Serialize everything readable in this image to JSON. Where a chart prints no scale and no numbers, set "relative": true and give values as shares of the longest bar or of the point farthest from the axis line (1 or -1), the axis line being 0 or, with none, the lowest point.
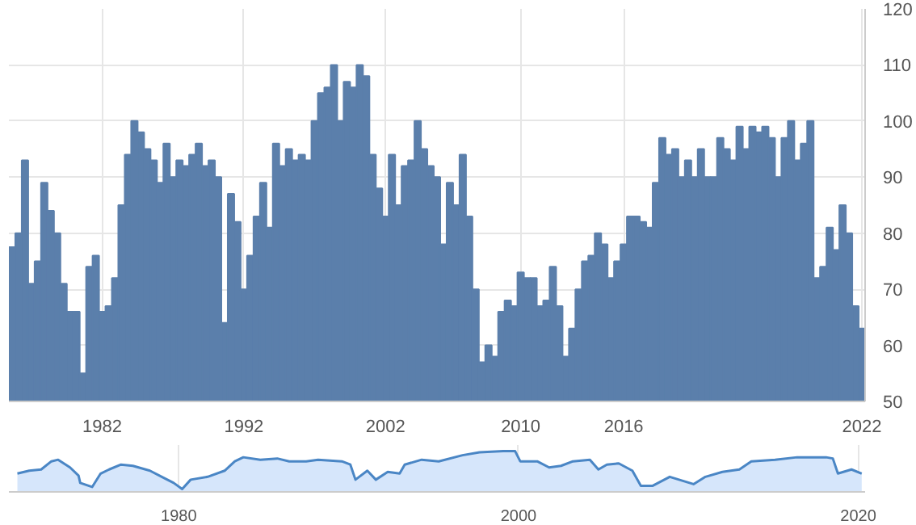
{
  "chart_data": [
    {
      "type": "bar",
      "categories": [
        null,
        null,
        null,
        null,
        null,
        null,
        null,
        null,
        null,
        null,
        null,
        null,
        null,
        null,
        "1982",
        null,
        null,
        null,
        null,
        null,
        null,
        null,
        null,
        null,
        null,
        null,
        null,
        null,
        null,
        null,
        null,
        null,
        null,
        null,
        null,
        null,
        "1992",
        null,
        null,
        null,
        null,
        null,
        null,
        null,
        null,
        null,
        null,
        null,
        null,
        null,
        null,
        null,
        null,
        null,
        null,
        null,
        null,
        null,
        "2002",
        null,
        null,
        null,
        null,
        null,
        null,
        null,
        null,
        null,
        null,
        null,
        null,
        null,
        null,
        null,
        null,
        null,
        null,
        null,
        null,
        "2010",
        null,
        null,
        null,
        null,
        null,
        null,
        null,
        null,
        null,
        null,
        null,
        null,
        null,
        null,
        null,
        "2016",
        null,
        null,
        null,
        null,
        null,
        null,
        null,
        null,
        null,
        null,
        null,
        null,
        null,
        null,
        null,
        null,
        null,
        null,
        null,
        null,
        null,
        null,
        null,
        null,
        null,
        null,
        null,
        null,
        null,
        null,
        null,
        null,
        null,
        null,
        null,
        null,
        "2022"
      ],
      "values": [
        77.5,
        80,
        93,
        71,
        75,
        89,
        84,
        80,
        71,
        66,
        66,
        55,
        74,
        76,
        66,
        67,
        72,
        85,
        94,
        100,
        98,
        95,
        93,
        89,
        96,
        90,
        93,
        92,
        94,
        96,
        92,
        93,
        90,
        64,
        87,
        82,
        70,
        76,
        83,
        89,
        81,
        96,
        92,
        95,
        93,
        94,
        93,
        100,
        105,
        106,
        110,
        100,
        107,
        106,
        110,
        108,
        94,
        88,
        83,
        94,
        85,
        92,
        93,
        100,
        95,
        92,
        90,
        78,
        89,
        85,
        94,
        83,
        70,
        57,
        60,
        58,
        66,
        68,
        67,
        73,
        72,
        72,
        67,
        68,
        74,
        67,
        58,
        63,
        70,
        75,
        76,
        80,
        78,
        72,
        75,
        78,
        83,
        83,
        82,
        81,
        89,
        97,
        94,
        95,
        90,
        93,
        90,
        95,
        90,
        90,
        97,
        95,
        93,
        99,
        95,
        99,
        98,
        99,
        97,
        90,
        97,
        100,
        93,
        96,
        100,
        72,
        74,
        81,
        77,
        85,
        80,
        67,
        63
      ],
      "color": "#5b7fab",
      "ylim": [
        50,
        120
      ],
      "yticks": [
        50,
        60,
        70,
        80,
        90,
        100,
        110,
        120
      ],
      "grid": true
    },
    {
      "type": "area",
      "relative": true,
      "color": "#4a86c5",
      "x": [
        1970.5,
        1971.2,
        1971.9,
        1972.5,
        1972.9,
        1973.6,
        1974.1,
        1974.2,
        1974.9,
        1975.4,
        1975.9,
        1976.6,
        1977.3,
        1978.3,
        1979.0,
        1979.7,
        1980.2,
        1980.7,
        1981.7,
        1982.7,
        1983.3,
        1983.8,
        1984.8,
        1985.8,
        1986.5,
        1987.5,
        1988.2,
        1989.6,
        1990.1,
        1990.4,
        1991.1,
        1991.6,
        1992.3,
        1993.0,
        1993.3,
        1994.3,
        1995.3,
        1996.7,
        1997.7,
        1999.1,
        1999.8,
        2000.1,
        2001.1,
        2001.8,
        2002.5,
        2003.2,
        2004.2,
        2004.7,
        2005.2,
        2005.9,
        2006.7,
        2007.2,
        2007.9,
        2008.9,
        2010.3,
        2011.0,
        2012.0,
        2013.0,
        2013.7,
        2015.1,
        2016.4,
        2018.1,
        2018.5,
        2018.8,
        2019.6,
        2020.2
      ],
      "values": [
        0.45,
        0.52,
        0.55,
        0.75,
        0.79,
        0.6,
        0.4,
        0.22,
        0.12,
        0.45,
        0.55,
        0.67,
        0.64,
        0.52,
        0.37,
        0.22,
        0.07,
        0.3,
        0.37,
        0.52,
        0.75,
        0.85,
        0.79,
        0.82,
        0.75,
        0.75,
        0.79,
        0.75,
        0.67,
        0.3,
        0.52,
        0.3,
        0.49,
        0.45,
        0.67,
        0.79,
        0.75,
        0.9,
        0.97,
        1,
        1,
        0.75,
        0.75,
        0.6,
        0.64,
        0.75,
        0.79,
        0.55,
        0.67,
        0.7,
        0.52,
        0.15,
        0.15,
        0.37,
        0.19,
        0.37,
        0.49,
        0.55,
        0.75,
        0.79,
        0.85,
        0.85,
        0.82,
        0.45,
        0.55,
        0.45
      ],
      "xlim": [
        1970,
        2020.4
      ],
      "xticks": [
        1980,
        2000,
        2020
      ],
      "grid": "x"
    }
  ]
}
